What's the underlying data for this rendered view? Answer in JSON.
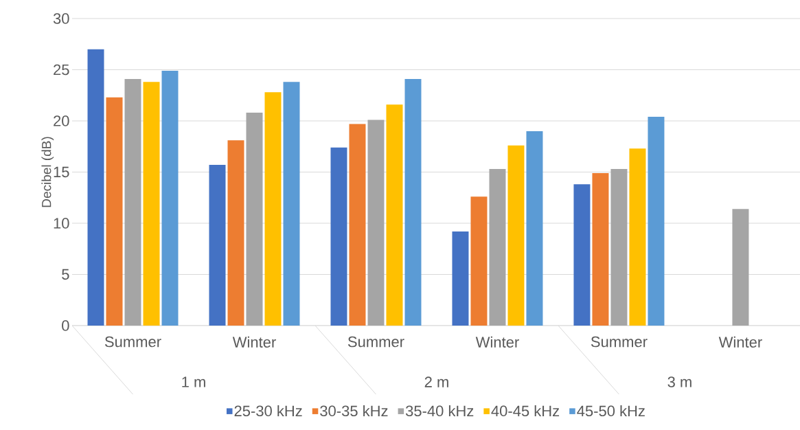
{
  "chart_data": {
    "type": "bar",
    "ylabel": "Decibel (dB)",
    "categories": [
      "Summer",
      "Winter",
      "Summer",
      "Winter",
      "Summer",
      "Winter"
    ],
    "annotations": [
      "1 m",
      "2 m",
      "3 m"
    ],
    "series": [
      {
        "name": "25-30 kHz",
        "color": "#4472c4",
        "values": [
          27.0,
          15.7,
          17.4,
          9.2,
          13.8,
          null
        ]
      },
      {
        "name": "30-35 kHz",
        "color": "#ed7d31",
        "values": [
          22.3,
          18.1,
          19.7,
          12.6,
          14.9,
          null
        ]
      },
      {
        "name": "35-40 kHz",
        "color": "#a5a5a5",
        "values": [
          24.1,
          20.8,
          20.1,
          15.3,
          15.3,
          11.4
        ]
      },
      {
        "name": "40-45 kHz",
        "color": "#ffc000",
        "values": [
          23.8,
          22.8,
          21.6,
          17.6,
          17.3,
          null
        ]
      },
      {
        "name": "45-50 kHz",
        "color": "#5b9bd5",
        "values": [
          24.9,
          23.8,
          24.1,
          19.0,
          20.4,
          null
        ]
      }
    ],
    "ylim": [
      0,
      30
    ],
    "yticks": [
      0,
      5,
      10,
      15,
      20,
      25,
      30
    ],
    "grid": "y",
    "legend": "bottom"
  }
}
